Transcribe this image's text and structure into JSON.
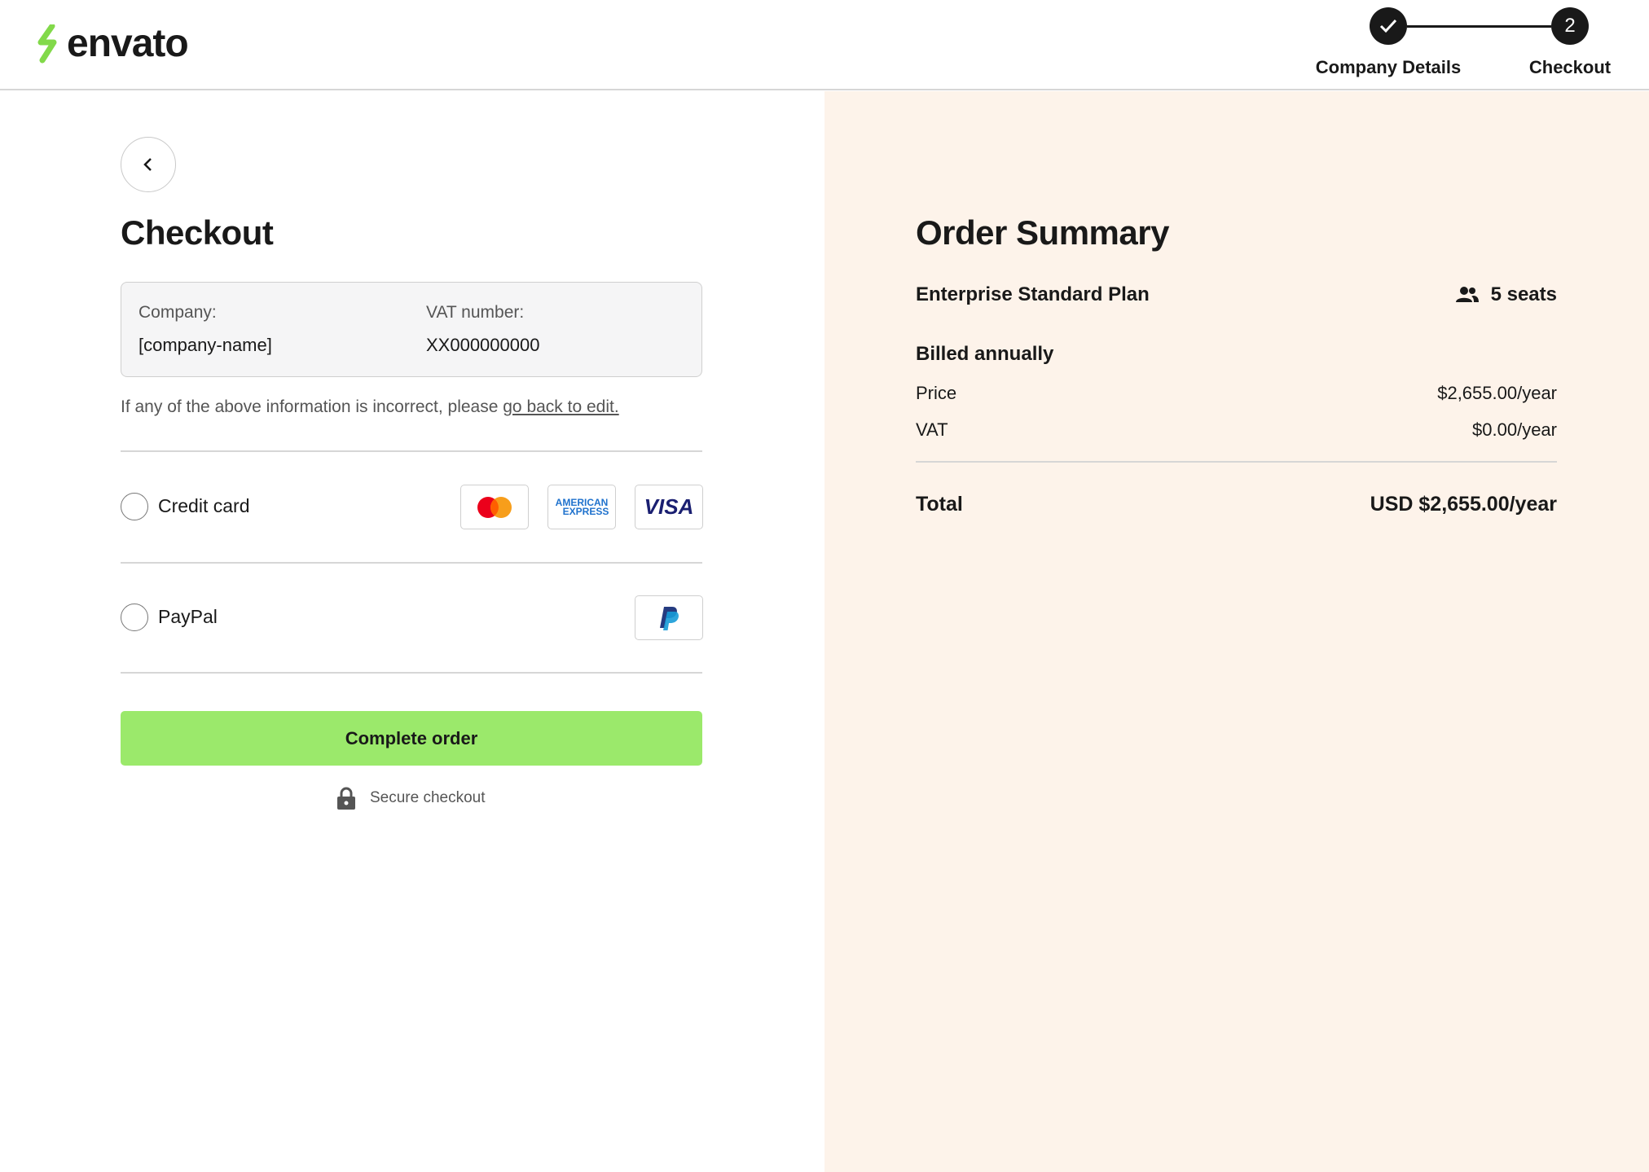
{
  "header": {
    "logo_text": "envato",
    "steps": [
      {
        "label": "Company Details",
        "status": "complete",
        "icon": "check-icon"
      },
      {
        "label": "Checkout",
        "number": "2",
        "status": "current"
      }
    ]
  },
  "checkout": {
    "title": "Checkout",
    "company_label": "Company:",
    "company_value": "[company-name]",
    "vat_label": "VAT number:",
    "vat_value": "XX000000000",
    "note_text": "If any of the above information is incorrect, please ",
    "note_link": "go back to edit.",
    "payment_options": [
      {
        "label": "Credit card",
        "logos": [
          "mastercard",
          "american-express",
          "visa"
        ]
      },
      {
        "label": "PayPal",
        "logos": [
          "paypal"
        ]
      }
    ],
    "amex_line1": "AMERICAN",
    "amex_line2": "EXPRESS",
    "visa_text": "VISA",
    "complete_button": "Complete order",
    "secure_text": "Secure checkout"
  },
  "summary": {
    "title": "Order Summary",
    "plan": "Enterprise Standard Plan",
    "seats": "5 seats",
    "billing": "Billed annually",
    "price_label": "Price",
    "price_value": "$2,655.00/year",
    "vat_label": "VAT",
    "vat_value": "$0.00/year",
    "total_label": "Total",
    "total_value": "USD $2,655.00/year"
  },
  "colors": {
    "accent": "#9be96b",
    "summary_bg": "#fdf3ea",
    "dark": "#191919"
  }
}
